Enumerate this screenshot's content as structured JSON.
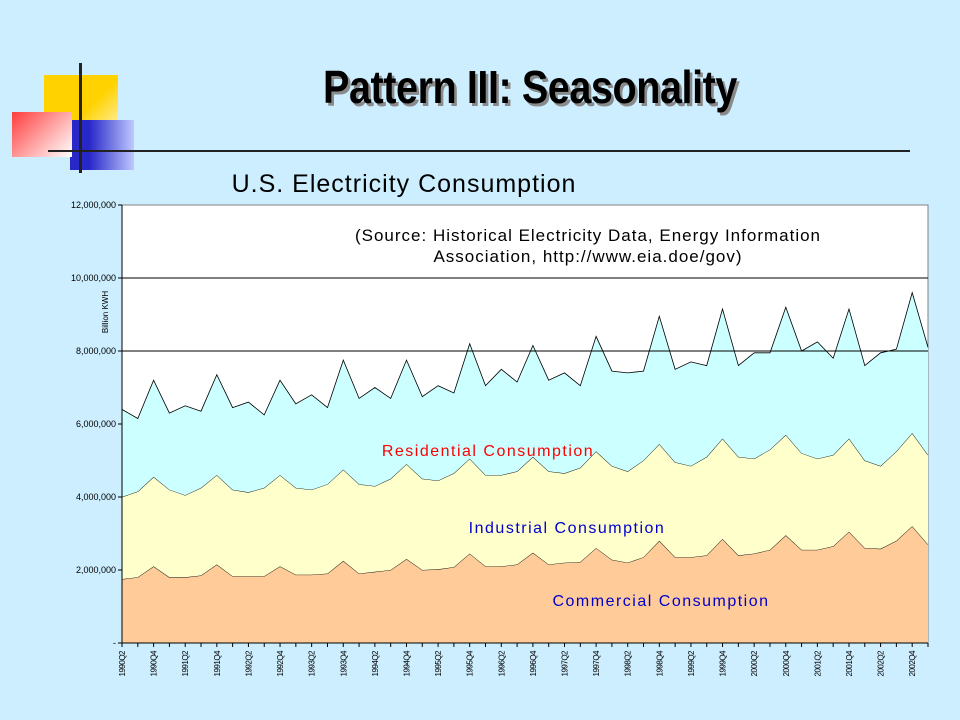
{
  "slide": {
    "title": "Pattern III: Seasonality"
  },
  "colors": {
    "background": "#cceeff",
    "commercial": "#ffcc99",
    "industrial": "#ffffcc",
    "residential": "#ccffff",
    "residential_label": "#ff0000",
    "industrial_label": "#0000cc",
    "commercial_label": "#0000cc"
  },
  "chart_data": {
    "type": "area",
    "stacked": true,
    "title": "U.S. Electricity Consumption",
    "annotation": [
      "(Source: Historical Electricity Data, Energy Information",
      "Association, http://www.eia.doe/gov)"
    ],
    "ylabel": "Billion KWH",
    "ylim": [
      0,
      12000000
    ],
    "y_ticks": [
      0,
      2000000,
      4000000,
      6000000,
      8000000,
      10000000,
      12000000
    ],
    "y_tick_labels": [
      "-",
      "2,000,000",
      "4,000,000",
      "6,000,000",
      "8,000,000",
      "10,000,000",
      "12,000,000"
    ],
    "gridlines": [
      8000000,
      10000000
    ],
    "x_tick_labels": [
      "1990Q2",
      "1990Q4",
      "1991Q2",
      "1991Q4",
      "1992Q2",
      "1992Q4",
      "1993Q2",
      "1993Q4",
      "1994Q2",
      "1994Q4",
      "1995Q2",
      "1995Q4",
      "1996Q2",
      "1996Q4",
      "1997Q2",
      "1997Q4",
      "1998Q2",
      "1998Q4",
      "1999Q2",
      "1999Q4",
      "2000Q2",
      "2000Q4",
      "2001Q2",
      "2001Q4",
      "2002Q2",
      "2002Q4"
    ],
    "series_labels": {
      "residential": "Residential Consumption",
      "industrial": "Industrial Consumption",
      "commercial": "Commercial Consumption"
    },
    "series": [
      {
        "key": "commercial",
        "cumulative": [
          1750000,
          1800000,
          2100000,
          1800000,
          1800000,
          1850000,
          2150000,
          1830000,
          1830000,
          1830000,
          2100000,
          1870000,
          1870000,
          1900000,
          2250000,
          1900000,
          1950000,
          2000000,
          2300000,
          2000000,
          2020000,
          2080000,
          2450000,
          2100000,
          2100000,
          2150000,
          2470000,
          2150000,
          2200000,
          2220000,
          2600000,
          2280000,
          2200000,
          2350000,
          2800000,
          2350000,
          2350000,
          2400000,
          2850000,
          2400000,
          2450000,
          2550000,
          2950000,
          2550000,
          2550000,
          2650000,
          3050000,
          2600000,
          2580000,
          2800000,
          3200000,
          2700000
        ]
      },
      {
        "key": "industrial",
        "cumulative": [
          4000000,
          4150000,
          4550000,
          4200000,
          4050000,
          4250000,
          4600000,
          4200000,
          4130000,
          4250000,
          4600000,
          4250000,
          4200000,
          4350000,
          4750000,
          4350000,
          4300000,
          4500000,
          4900000,
          4500000,
          4450000,
          4650000,
          5050000,
          4600000,
          4600000,
          4700000,
          5100000,
          4700000,
          4650000,
          4800000,
          5250000,
          4850000,
          4700000,
          5000000,
          5450000,
          4950000,
          4850000,
          5100000,
          5600000,
          5100000,
          5050000,
          5300000,
          5700000,
          5200000,
          5050000,
          5150000,
          5600000,
          5000000,
          4850000,
          5250000,
          5750000,
          5150000
        ]
      },
      {
        "key": "residential",
        "cumulative": [
          6400000,
          6150000,
          7200000,
          6300000,
          6500000,
          6350000,
          7350000,
          6450000,
          6600000,
          6250000,
          7200000,
          6550000,
          6800000,
          6450000,
          7750000,
          6700000,
          7000000,
          6700000,
          7750000,
          6750000,
          7050000,
          6850000,
          8200000,
          7050000,
          7500000,
          7150000,
          8150000,
          7200000,
          7400000,
          7050000,
          8400000,
          7450000,
          7400000,
          7450000,
          8950000,
          7500000,
          7700000,
          7600000,
          9150000,
          7600000,
          7950000,
          7950000,
          9200000,
          8000000,
          8250000,
          7800000,
          9150000,
          7600000,
          7950000,
          8050000,
          9600000,
          8100000
        ]
      }
    ]
  }
}
